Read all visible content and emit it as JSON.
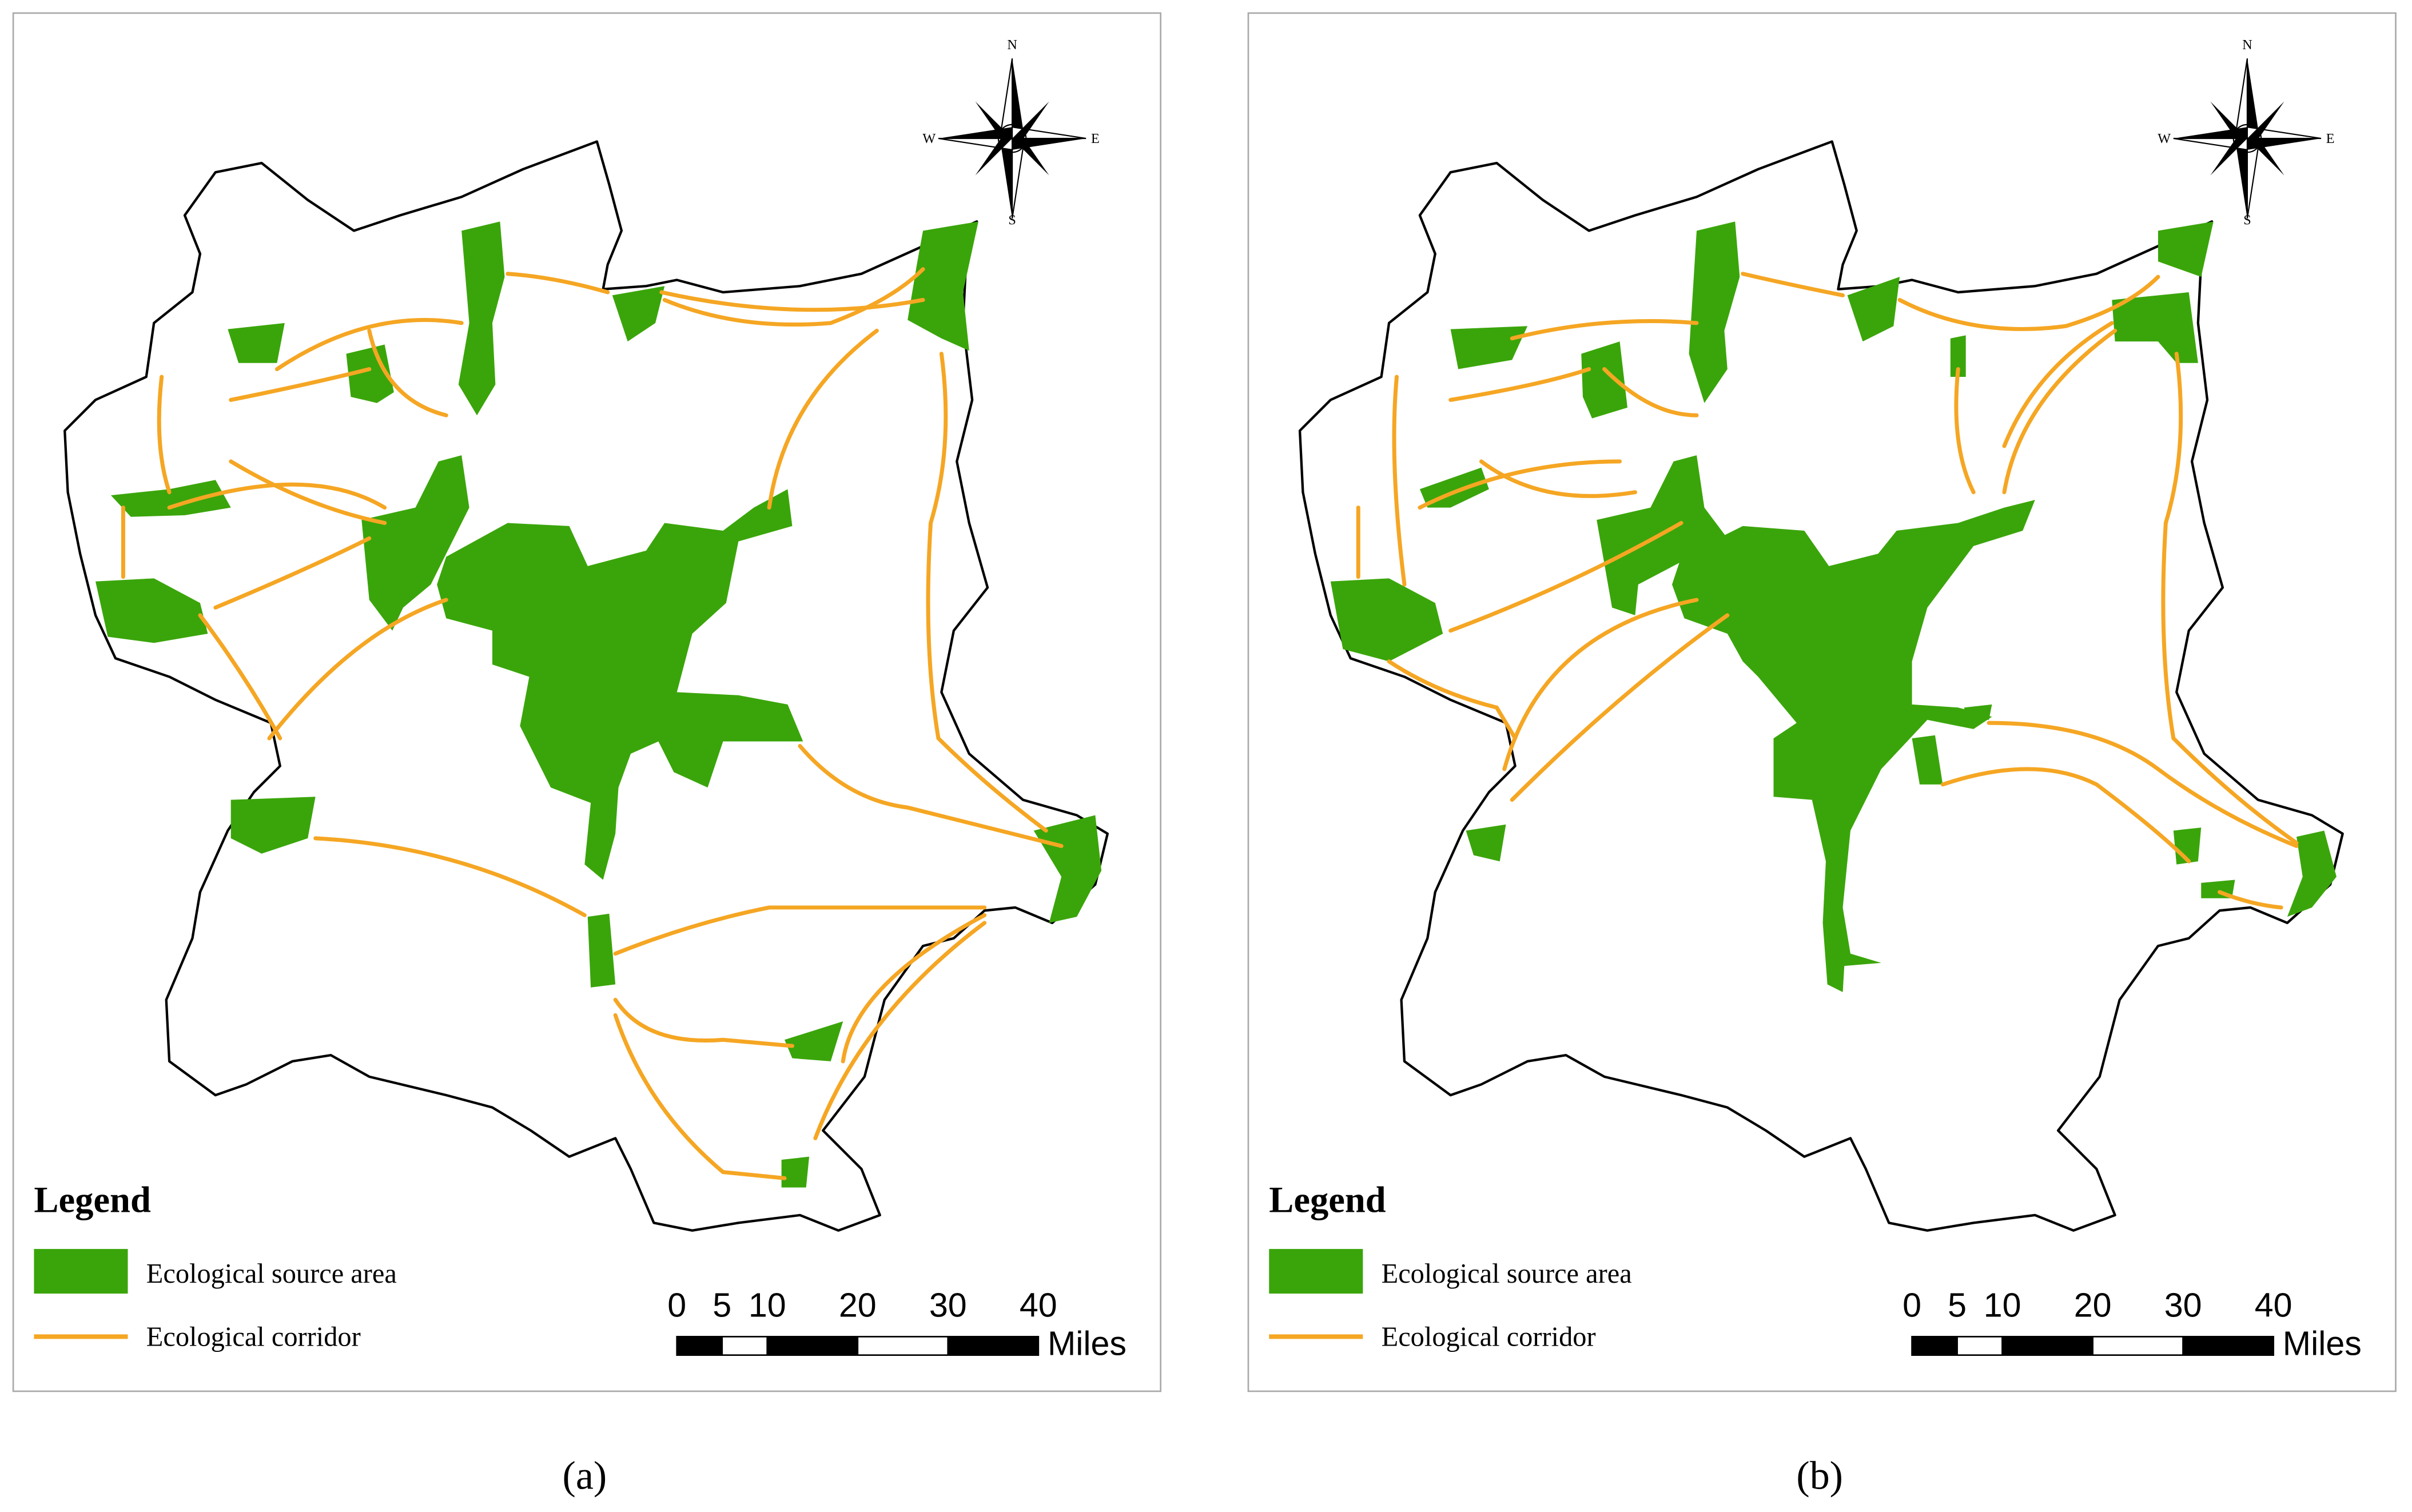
{
  "panels": [
    {
      "caption": "(a)",
      "compass": {
        "n": "N",
        "s": "S",
        "w": "W",
        "e": "E"
      },
      "legend": {
        "title": "Legend",
        "items": [
          "Ecological source area",
          "Ecological corridor"
        ]
      },
      "scale_bar": {
        "ticks": [
          0,
          5,
          10,
          20,
          30,
          40
        ],
        "unit": "Miles"
      }
    },
    {
      "caption": "(b)",
      "compass": {
        "n": "N",
        "s": "S",
        "w": "W",
        "e": "E"
      },
      "legend": {
        "title": "Legend",
        "items": [
          "Ecological source area",
          "Ecological corridor"
        ]
      },
      "scale_bar": {
        "ticks": [
          0,
          5,
          10,
          20,
          30,
          40
        ],
        "unit": "Miles"
      }
    }
  ]
}
